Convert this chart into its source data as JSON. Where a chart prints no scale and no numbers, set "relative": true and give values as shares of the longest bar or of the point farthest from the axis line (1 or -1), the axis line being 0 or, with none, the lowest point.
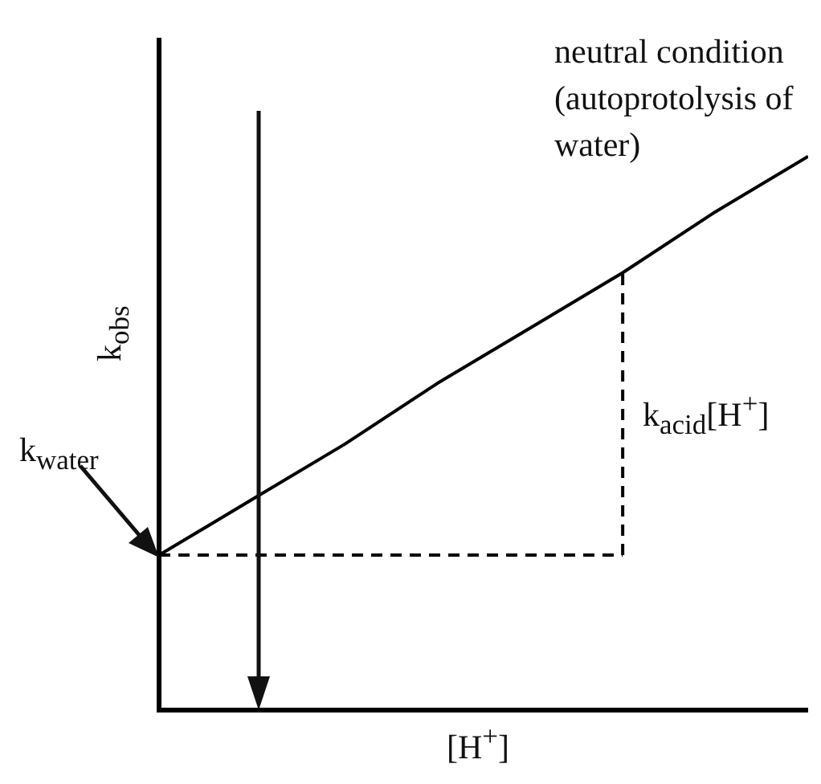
{
  "chart_data": {
    "type": "line",
    "relative": true,
    "xlabel": "[H$^{+}$]",
    "ylabel": "k$_{obs}$",
    "categories": [
      null,
      null,
      null,
      null,
      null,
      null,
      null,
      null
    ],
    "series": [
      {
        "color": "#000000",
        "line_style": "solid",
        "values": [
          0.28,
          0.38,
          0.48,
          0.59,
          0.69,
          0.79,
          0.9,
          1
        ]
      },
      {
        "color": "#000000",
        "line_style": "dashed",
        "values": [
          0.28,
          0.28,
          0.28,
          0.28,
          0.28,
          0.28,
          null,
          null
        ]
      }
    ],
    "annotations": [
      "neutral condition (autoprotolysis of water)",
      "k$_{water}$",
      "k$_{acid}$[H$^{+}$]"
    ],
    "marker": "none",
    "grid": false,
    "legend": false
  }
}
